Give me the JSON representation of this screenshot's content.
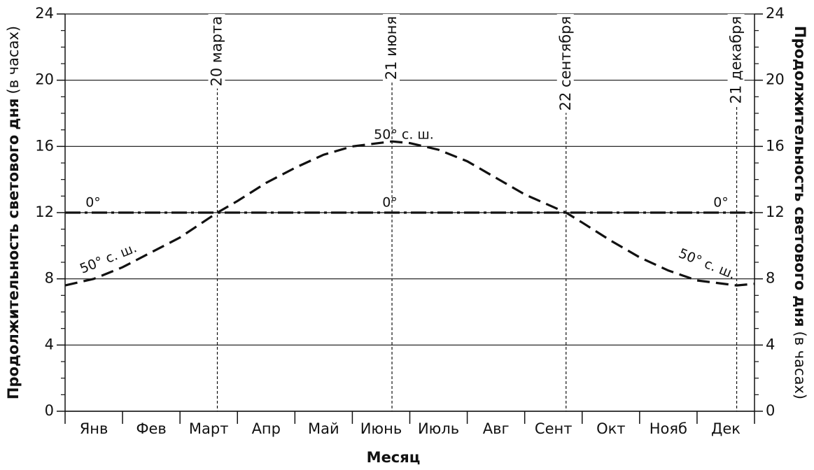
{
  "chart_data": {
    "type": "line",
    "categories": [
      "Янв",
      "Фев",
      "Март",
      "Апр",
      "Май",
      "Июнь",
      "Июль",
      "Авг",
      "Сент",
      "Окт",
      "Нояб",
      "Дек"
    ],
    "x_label": "Месяц",
    "y_label": "Продолжительность светового дня",
    "y_label_unit": "(в часах)",
    "y2_label": "Продолжительность светового дня",
    "y2_label_unit": "(в часах)",
    "xlim": [
      0,
      12
    ],
    "ylim": [
      0,
      24
    ],
    "yticks": [
      0,
      4,
      8,
      12,
      16,
      20,
      24
    ],
    "y2lim": [
      0,
      24
    ],
    "y2ticks": [
      0,
      4,
      8,
      12,
      16,
      20,
      24
    ],
    "grid": true,
    "annotations": [
      {
        "x": 2.65,
        "text": "20 марта"
      },
      {
        "x": 5.69,
        "text": "21 июня"
      },
      {
        "x": 8.72,
        "text": "22 сентября"
      },
      {
        "x": 11.69,
        "text": "21 декабря"
      }
    ],
    "series": [
      {
        "name": "50° с. ш.",
        "color": "#111111",
        "style": "dashed",
        "x": [
          0,
          0.5,
          1,
          1.5,
          2,
          2.65,
          3,
          3.5,
          4,
          4.5,
          5,
          5.69,
          6,
          6.5,
          7,
          7.5,
          8,
          8.72,
          9,
          9.5,
          10,
          10.5,
          11,
          11.69,
          12
        ],
        "values": [
          7.6,
          8.0,
          8.7,
          9.6,
          10.5,
          12,
          12.7,
          13.8,
          14.7,
          15.5,
          16.0,
          16.3,
          16.2,
          15.8,
          15.1,
          14.1,
          13.1,
          12,
          11.4,
          10.3,
          9.3,
          8.5,
          7.9,
          7.6,
          7.7
        ]
      },
      {
        "name": "0°",
        "color": "#111111",
        "style": "dashdot",
        "x": [
          0,
          12
        ],
        "values": [
          12,
          12
        ]
      }
    ]
  }
}
